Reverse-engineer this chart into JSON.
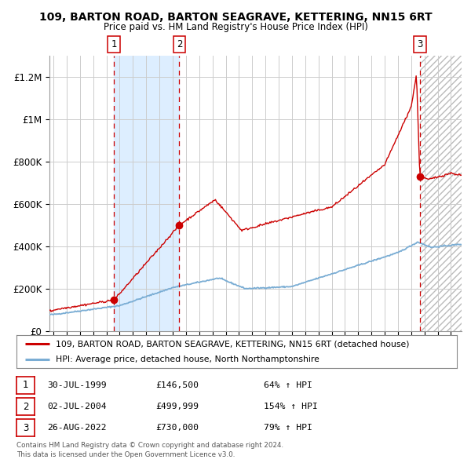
{
  "title": "109, BARTON ROAD, BARTON SEAGRAVE, KETTERING, NN15 6RT",
  "subtitle": "Price paid vs. HM Land Registry's House Price Index (HPI)",
  "legend_red": "109, BARTON ROAD, BARTON SEAGRAVE, KETTERING, NN15 6RT (detached house)",
  "legend_blue": "HPI: Average price, detached house, North Northamptonshire",
  "transactions": [
    {
      "num": 1,
      "date": "30-JUL-1999",
      "price": 146500,
      "pct": "64%",
      "dir": "↑",
      "year": 1999.58
    },
    {
      "num": 2,
      "date": "02-JUL-2004",
      "price": 499999,
      "pct": "154%",
      "dir": "↑",
      "year": 2004.5
    },
    {
      "num": 3,
      "date": "26-AUG-2022",
      "price": 730000,
      "pct": "79%",
      "dir": "↑",
      "year": 2022.65
    }
  ],
  "footnote1": "Contains HM Land Registry data © Crown copyright and database right 2024.",
  "footnote2": "This data is licensed under the Open Government Licence v3.0.",
  "bg_color": "#ffffff",
  "plot_bg": "#ffffff",
  "grid_color": "#cccccc",
  "red_color": "#cc0000",
  "blue_color": "#7aadd4",
  "shade_color": "#ddeeff",
  "dashed_color": "#cc0000",
  "yticks": [
    0,
    200000,
    400000,
    600000,
    800000,
    1000000,
    1200000
  ],
  "ylabels": [
    "£0",
    "£200K",
    "£400K",
    "£600K",
    "£800K",
    "£1M",
    "£1.2M"
  ],
  "ylim": [
    0,
    1300000
  ],
  "xlim_start": 1994.7,
  "xlim_end": 2025.8
}
